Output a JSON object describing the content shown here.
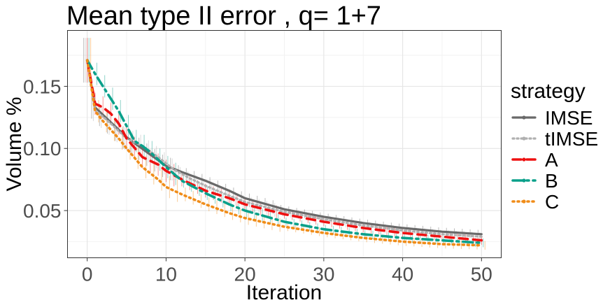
{
  "chart_data": {
    "type": "line",
    "title": "Mean type II error , q= 1+7",
    "xlabel": "Iteration",
    "ylabel": "Volume %",
    "xlim": [
      -2.5,
      52.5
    ],
    "ylim": [
      0.012,
      0.195
    ],
    "x_ticks": [
      0,
      10,
      20,
      30,
      40,
      50
    ],
    "x_tick_labels": [
      "0",
      "10",
      "20",
      "30",
      "40",
      "50"
    ],
    "y_ticks": [
      0.05,
      0.1,
      0.15
    ],
    "y_tick_labels": [
      "0.05",
      "0.10",
      "0.15"
    ],
    "grid": true,
    "error_bars": true,
    "legend": {
      "title": "strategy",
      "position": "right"
    },
    "series": [
      {
        "name": "IMSE",
        "color": "#696969",
        "dash": "solid",
        "width": 3.2,
        "x": [
          0,
          1,
          3,
          5,
          8,
          10,
          12,
          15,
          18,
          20,
          25,
          30,
          35,
          40,
          45,
          50
        ],
        "y": [
          0.171,
          0.133,
          0.121,
          0.109,
          0.095,
          0.086,
          0.081,
          0.074,
          0.066,
          0.06,
          0.051,
          0.045,
          0.04,
          0.036,
          0.033,
          0.031
        ]
      },
      {
        "name": "tIMSE",
        "color": "#b0b0b0",
        "dash": "2 4",
        "width": 3.2,
        "x": [
          0,
          1,
          3,
          5,
          7,
          9,
          11,
          13,
          15,
          18,
          20,
          25,
          30,
          35,
          40,
          45,
          50
        ],
        "y": [
          0.171,
          0.131,
          0.12,
          0.108,
          0.102,
          0.093,
          0.083,
          0.076,
          0.07,
          0.062,
          0.057,
          0.049,
          0.043,
          0.038,
          0.034,
          0.031,
          0.029
        ]
      },
      {
        "name": "A",
        "color": "#ee1111",
        "dash": "12 8",
        "width": 3.6,
        "x": [
          0,
          1,
          2,
          3,
          4,
          5,
          7,
          9,
          10,
          12,
          15,
          18,
          20,
          25,
          30,
          35,
          40,
          45,
          50
        ],
        "y": [
          0.171,
          0.136,
          0.133,
          0.128,
          0.12,
          0.108,
          0.093,
          0.087,
          0.082,
          0.075,
          0.066,
          0.06,
          0.055,
          0.047,
          0.041,
          0.036,
          0.032,
          0.029,
          0.026
        ]
      },
      {
        "name": "B",
        "color": "#0aa08a",
        "dash": "14 6 3 6",
        "width": 3.6,
        "x": [
          0,
          1,
          2,
          3,
          4,
          5,
          6,
          7,
          8,
          10,
          12,
          15,
          18,
          20,
          25,
          30,
          35,
          40,
          45,
          50
        ],
        "y": [
          0.171,
          0.16,
          0.15,
          0.14,
          0.13,
          0.118,
          0.106,
          0.102,
          0.097,
          0.085,
          0.074,
          0.064,
          0.055,
          0.05,
          0.041,
          0.035,
          0.031,
          0.028,
          0.026,
          0.024
        ]
      },
      {
        "name": "C",
        "color": "#f08c18",
        "dash": "2 5",
        "width": 3.6,
        "x": [
          0,
          1,
          2,
          3,
          4,
          5,
          7,
          9,
          10,
          12,
          15,
          18,
          20,
          25,
          30,
          35,
          40,
          45,
          50
        ],
        "y": [
          0.171,
          0.13,
          0.122,
          0.115,
          0.108,
          0.1,
          0.085,
          0.075,
          0.069,
          0.063,
          0.055,
          0.048,
          0.044,
          0.037,
          0.032,
          0.028,
          0.025,
          0.023,
          0.022
        ]
      }
    ]
  }
}
